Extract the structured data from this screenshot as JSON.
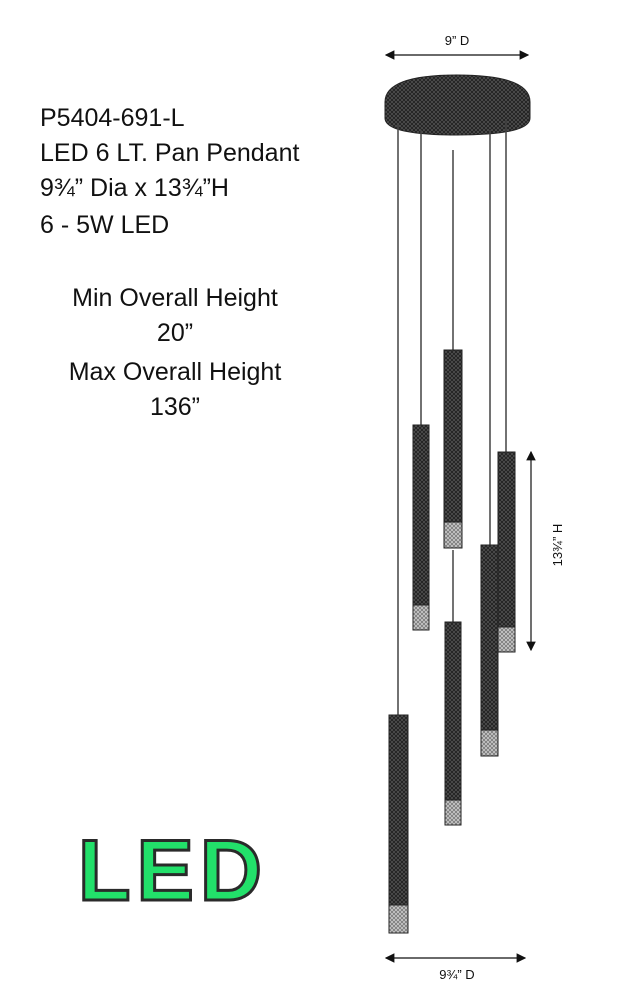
{
  "spec": {
    "model": "P5404-691-L",
    "name": "LED 6 LT. Pan Pendant",
    "size": "9¾” Dia x 13¾”H",
    "lamps": "6 - 5W LED"
  },
  "heights": {
    "min_label": "Min Overall Height",
    "min_value": "20”",
    "max_label": "Max Overall Height",
    "max_value": "136”"
  },
  "badge": "LED",
  "dimensions": {
    "canopy_width": "9” D",
    "fixture_height": "13¾” H",
    "fixture_width": "9¾” D"
  }
}
